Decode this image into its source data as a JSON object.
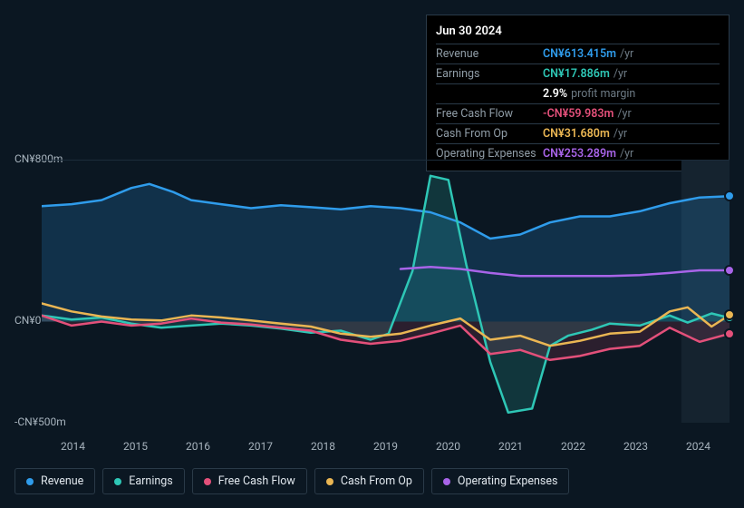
{
  "tooltip": {
    "date": "Jun 30 2024",
    "rows": [
      {
        "label": "Revenue",
        "value": "CN¥613.415m",
        "suffix": "/yr",
        "color": "#2f9ceb"
      },
      {
        "label": "Earnings",
        "value": "CN¥17.886m",
        "suffix": "/yr",
        "color": "#2ec7b6"
      },
      {
        "label": "",
        "value": "2.9%",
        "suffix": "profit margin",
        "color": "#ffffff"
      },
      {
        "label": "Free Cash Flow",
        "value": "-CN¥59.983m",
        "suffix": "/yr",
        "color": "#e3507a"
      },
      {
        "label": "Cash From Op",
        "value": "CN¥31.680m",
        "suffix": "/yr",
        "color": "#eab653"
      },
      {
        "label": "Operating Expenses",
        "value": "CN¥253.289m",
        "suffix": "/yr",
        "color": "#a864e8"
      }
    ]
  },
  "chart": {
    "type": "line",
    "background": "#0b1722",
    "plot_overlay_right": "#15232f",
    "grid_top_color": "#1c2c3a",
    "y_axis": {
      "min": -500,
      "max": 800,
      "ticks": [
        {
          "v": 800,
          "label": "CN¥800m"
        },
        {
          "v": 0,
          "label": "CN¥0"
        },
        {
          "v": -500,
          "label": "-CN¥500m"
        }
      ]
    },
    "x_axis": {
      "min": 2013.5,
      "max": 2025,
      "ticks": [
        2014,
        2015,
        2016,
        2017,
        2018,
        2019,
        2020,
        2021,
        2022,
        2023,
        2024
      ]
    },
    "line_width": 2.5,
    "series": [
      {
        "key": "revenue",
        "label": "Revenue",
        "color": "#2f9ceb",
        "fill_opacity": 0.2,
        "dot_end": true,
        "points": [
          [
            2013.5,
            570
          ],
          [
            2014,
            580
          ],
          [
            2014.5,
            600
          ],
          [
            2015,
            660
          ],
          [
            2015.3,
            680
          ],
          [
            2015.7,
            640
          ],
          [
            2016,
            600
          ],
          [
            2016.5,
            580
          ],
          [
            2017,
            560
          ],
          [
            2017.5,
            575
          ],
          [
            2018,
            565
          ],
          [
            2018.5,
            555
          ],
          [
            2019,
            570
          ],
          [
            2019.5,
            560
          ],
          [
            2020,
            540
          ],
          [
            2020.5,
            490
          ],
          [
            2021,
            410
          ],
          [
            2021.5,
            430
          ],
          [
            2022,
            490
          ],
          [
            2022.5,
            520
          ],
          [
            2023,
            520
          ],
          [
            2023.5,
            545
          ],
          [
            2024,
            585
          ],
          [
            2024.5,
            613
          ],
          [
            2025,
            620
          ]
        ]
      },
      {
        "key": "earnings",
        "label": "Earnings",
        "color": "#2ec7b6",
        "fill_opacity": 0.18,
        "dot_end": true,
        "points": [
          [
            2013.5,
            30
          ],
          [
            2014,
            10
          ],
          [
            2014.5,
            20
          ],
          [
            2015,
            -10
          ],
          [
            2015.5,
            -30
          ],
          [
            2016,
            -20
          ],
          [
            2016.5,
            -10
          ],
          [
            2017,
            -20
          ],
          [
            2017.5,
            -35
          ],
          [
            2018,
            -55
          ],
          [
            2018.5,
            -45
          ],
          [
            2019,
            -90
          ],
          [
            2019.3,
            -60
          ],
          [
            2019.7,
            250
          ],
          [
            2020,
            720
          ],
          [
            2020.3,
            700
          ],
          [
            2020.6,
            280
          ],
          [
            2021,
            -200
          ],
          [
            2021.3,
            -450
          ],
          [
            2021.7,
            -430
          ],
          [
            2022,
            -120
          ],
          [
            2022.3,
            -70
          ],
          [
            2022.7,
            -40
          ],
          [
            2023,
            -10
          ],
          [
            2023.5,
            -20
          ],
          [
            2024,
            30
          ],
          [
            2024.3,
            -5
          ],
          [
            2024.7,
            40
          ],
          [
            2025,
            18
          ]
        ]
      },
      {
        "key": "fcf",
        "label": "Free Cash Flow",
        "color": "#e3507a",
        "fill_opacity": 0.15,
        "dot_end": true,
        "points": [
          [
            2013.5,
            30
          ],
          [
            2014,
            -20
          ],
          [
            2014.5,
            0
          ],
          [
            2015,
            -20
          ],
          [
            2015.5,
            -10
          ],
          [
            2016,
            15
          ],
          [
            2016.5,
            -5
          ],
          [
            2017,
            -15
          ],
          [
            2017.5,
            -30
          ],
          [
            2018,
            -45
          ],
          [
            2018.5,
            -90
          ],
          [
            2019,
            -110
          ],
          [
            2019.5,
            -95
          ],
          [
            2020,
            -60
          ],
          [
            2020.5,
            -20
          ],
          [
            2021,
            -160
          ],
          [
            2021.5,
            -140
          ],
          [
            2022,
            -190
          ],
          [
            2022.5,
            -170
          ],
          [
            2023,
            -135
          ],
          [
            2023.5,
            -120
          ],
          [
            2024,
            -30
          ],
          [
            2024.5,
            -100
          ],
          [
            2025,
            -60
          ]
        ]
      },
      {
        "key": "cfo",
        "label": "Cash From Op",
        "color": "#eab653",
        "fill_opacity": 0,
        "dot_end": true,
        "points": [
          [
            2013.5,
            90
          ],
          [
            2014,
            50
          ],
          [
            2014.5,
            25
          ],
          [
            2015,
            10
          ],
          [
            2015.5,
            5
          ],
          [
            2016,
            30
          ],
          [
            2016.5,
            20
          ],
          [
            2017,
            5
          ],
          [
            2017.5,
            -10
          ],
          [
            2018,
            -25
          ],
          [
            2018.5,
            -60
          ],
          [
            2019,
            -75
          ],
          [
            2019.5,
            -60
          ],
          [
            2020,
            -20
          ],
          [
            2020.5,
            15
          ],
          [
            2021,
            -90
          ],
          [
            2021.5,
            -70
          ],
          [
            2022,
            -120
          ],
          [
            2022.5,
            -95
          ],
          [
            2023,
            -60
          ],
          [
            2023.5,
            -50
          ],
          [
            2024,
            50
          ],
          [
            2024.3,
            70
          ],
          [
            2024.7,
            -25
          ],
          [
            2025,
            32
          ]
        ]
      },
      {
        "key": "opex",
        "label": "Operating Expenses",
        "color": "#a864e8",
        "fill_opacity": 0,
        "dot_end": true,
        "points": [
          [
            2019.5,
            260
          ],
          [
            2020,
            270
          ],
          [
            2020.5,
            260
          ],
          [
            2021,
            240
          ],
          [
            2021.5,
            225
          ],
          [
            2022,
            225
          ],
          [
            2022.5,
            225
          ],
          [
            2023,
            225
          ],
          [
            2023.5,
            230
          ],
          [
            2024,
            240
          ],
          [
            2024.5,
            253
          ],
          [
            2025,
            253
          ]
        ]
      }
    ]
  },
  "legend": [
    {
      "label": "Revenue",
      "color": "#2f9ceb"
    },
    {
      "label": "Earnings",
      "color": "#2ec7b6"
    },
    {
      "label": "Free Cash Flow",
      "color": "#e3507a"
    },
    {
      "label": "Cash From Op",
      "color": "#eab653"
    },
    {
      "label": "Operating Expenses",
      "color": "#a864e8"
    }
  ]
}
